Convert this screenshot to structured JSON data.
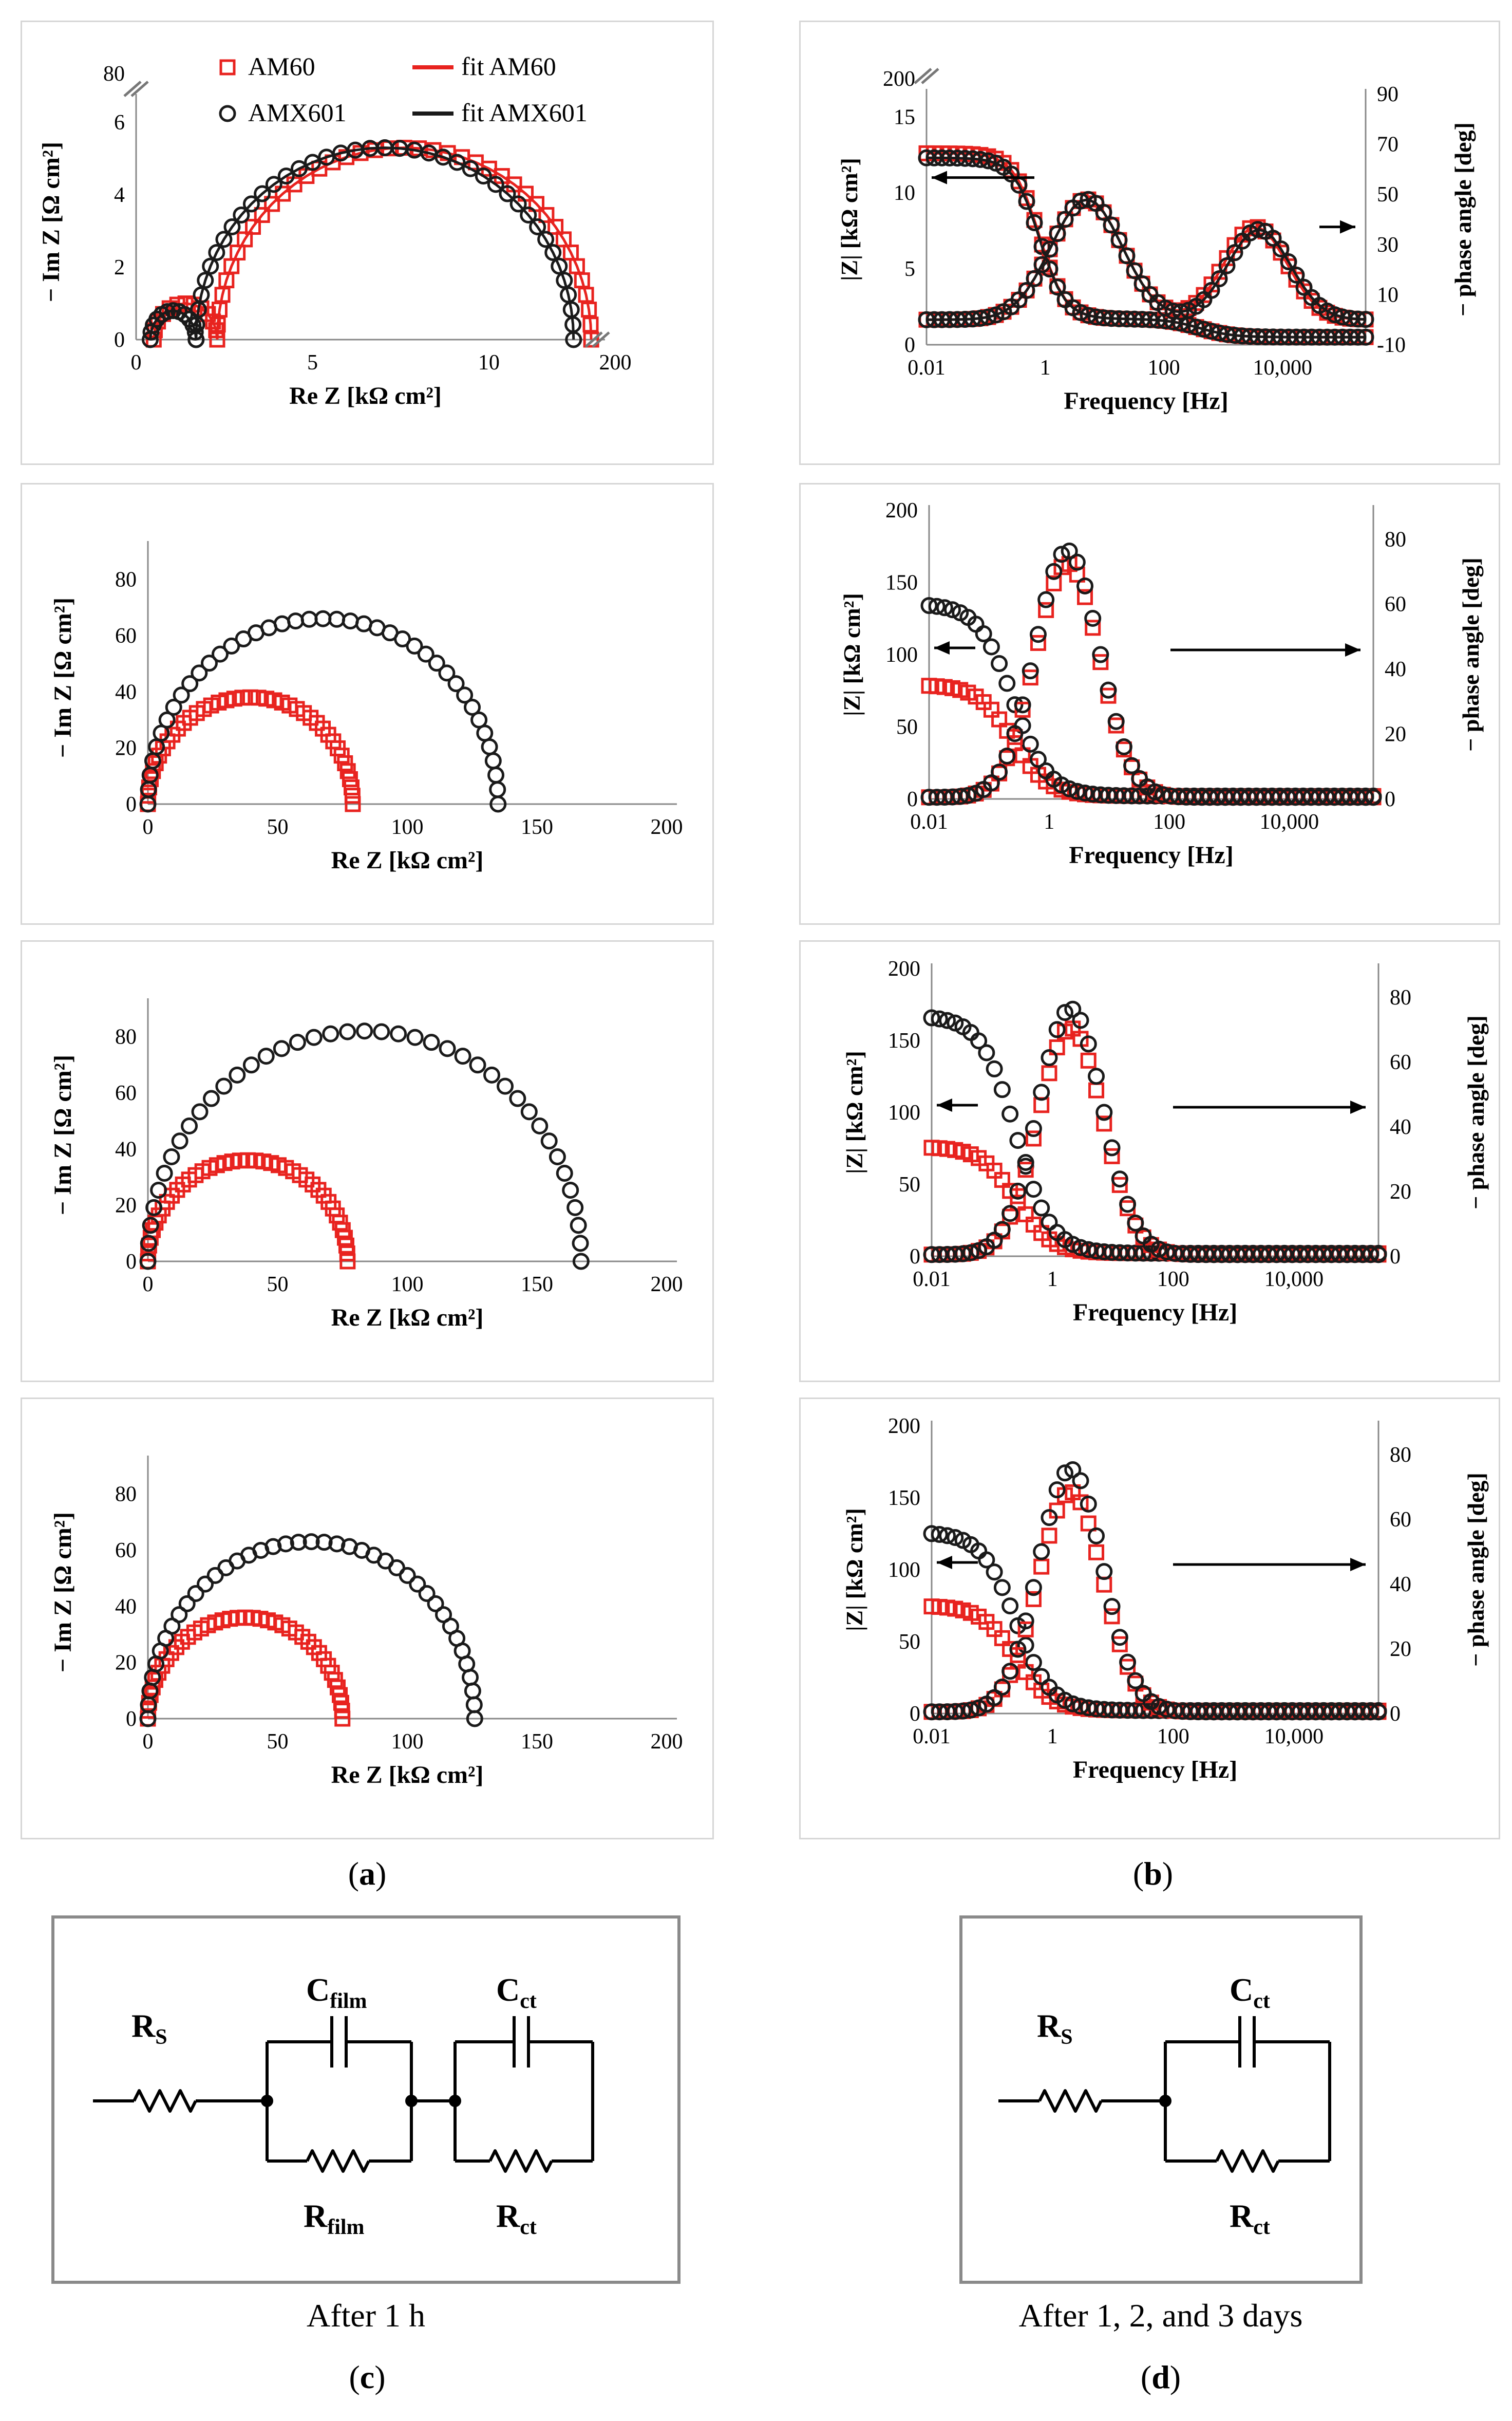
{
  "legend": {
    "am60": "AM60",
    "amx601": "AMX601",
    "fit_am60": "fit AM60",
    "fit_amx601": "fit AMX601",
    "color_am60": "#e8231f",
    "color_amx601": "#1a1a1a"
  },
  "panel_labels": {
    "a": "a",
    "b": "b",
    "c": "c",
    "d": "d"
  },
  "captions": {
    "c": "After 1 h",
    "d": "After 1, 2, and 3 days"
  },
  "circuit_c": {
    "rs": "R",
    "rs_sub": "S",
    "cfilm": "C",
    "cfilm_sub": "film",
    "rfilm": "R",
    "rfilm_sub": "film",
    "cct": "C",
    "cct_sub": "ct",
    "rct": "R",
    "rct_sub": "ct"
  },
  "circuit_d": {
    "rs": "R",
    "rs_sub": "S",
    "cct": "C",
    "cct_sub": "ct",
    "rct": "R",
    "rct_sub": "ct"
  },
  "chart_data": [
    {
      "id": "nyquist-1h",
      "type": "scatter",
      "xlabel": "Re Z [kΩ cm²]",
      "ylabel": "− Im Z [Ω cm²]",
      "xticks": [
        "0",
        "5",
        "10",
        "200"
      ],
      "yticks": [
        "0",
        "2",
        "4",
        "6",
        "80"
      ],
      "xlim": [
        0,
        13
      ],
      "ylim": [
        0,
        6.5
      ],
      "axis_break": true,
      "series": [
        {
          "name": "AM60",
          "arcs": [
            {
              "start": 0.5,
              "end": 2.3,
              "height": 1.0
            },
            {
              "start": 2.3,
              "end": 12.9,
              "height": 5.3
            }
          ]
        },
        {
          "name": "AMX601",
          "arcs": [
            {
              "start": 0.4,
              "end": 1.7,
              "height": 0.8
            },
            {
              "start": 1.7,
              "end": 12.4,
              "height": 5.3
            }
          ]
        }
      ]
    },
    {
      "id": "bode-1h",
      "type": "line",
      "xlabel": "Frequency [Hz]",
      "ylabel_left": "|Z| [kΩ cm²]",
      "ylabel_right": "− phase angle [deg]",
      "xticks": [
        "0.01",
        "1",
        "100",
        "10,000"
      ],
      "yticks_left": [
        "0",
        "5",
        "10",
        "15",
        "200"
      ],
      "yticks_right": [
        "-10",
        "10",
        "30",
        "50",
        "70",
        "90"
      ],
      "ylim_left": [
        0,
        16.5
      ],
      "ylim_right": [
        -10,
        90
      ],
      "axis_break": true,
      "series": [
        {
          "name": "AM60 |Z|",
          "plateau": 12.6,
          "r2": 1.2,
          "f2": 0.8,
          "f1": 400,
          "rs": 0.5
        },
        {
          "name": "AMX601 |Z|",
          "plateau": 12.3,
          "r2": 1.2,
          "f2": 0.8,
          "f1": 400,
          "rs": 0.5
        },
        {
          "name": "AM60 phase",
          "peaks": [
            {
              "peak": 48,
              "freq_hz": 5,
              "width": 0.85
            },
            {
              "peak": 37,
              "freq_hz": 3500,
              "width": 0.75
            }
          ]
        },
        {
          "name": "AMX601 phase",
          "peaks": [
            {
              "peak": 48,
              "freq_hz": 5,
              "width": 0.85
            },
            {
              "peak": 36,
              "freq_hz": 4000,
              "width": 0.75
            }
          ]
        }
      ]
    },
    {
      "id": "nyquist-day1",
      "type": "scatter",
      "xlabel": "Re Z [kΩ cm²]",
      "ylabel": "− Im Z [Ω cm²]",
      "xticks": [
        "0",
        "50",
        "100",
        "150",
        "200"
      ],
      "yticks": [
        "0",
        "20",
        "40",
        "60",
        "80"
      ],
      "xlim": [
        0,
        200
      ],
      "ylim": [
        0,
        90
      ],
      "series": [
        {
          "name": "AM60",
          "start": 0,
          "end": 79,
          "height": 38
        },
        {
          "name": "AMX601",
          "start": 0,
          "end": 135,
          "height": 66
        }
      ]
    },
    {
      "id": "bode-day1",
      "type": "line",
      "xlabel": "Frequency [Hz]",
      "ylabel_left": "|Z| [kΩ cm²]",
      "ylabel_right": "− phase angle [deg]",
      "xticks": [
        "0.01",
        "1",
        "100",
        "10,000"
      ],
      "yticks_left": [
        "0",
        "50",
        "100",
        "150",
        "200"
      ],
      "yticks_right": [
        "0",
        "20",
        "40",
        "60",
        "80"
      ],
      "ylim_left": [
        0,
        200
      ],
      "ylim_right": [
        0,
        88.9
      ],
      "series": [
        {
          "name": "AM60 |Z|",
          "plateau": 79
        },
        {
          "name": "AMX601 |Z|",
          "plateau": 135
        },
        {
          "name": "AM60 phase",
          "peak": 72,
          "freq_hz": 2
        },
        {
          "name": "AMX601 phase",
          "peak": 76,
          "freq_hz": 2
        }
      ]
    },
    {
      "id": "nyquist-day2",
      "type": "scatter",
      "xlabel": "Re Z [kΩ cm²]",
      "ylabel": "− Im Z [Ω cm²]",
      "xticks": [
        "0",
        "50",
        "100",
        "150",
        "200"
      ],
      "yticks": [
        "0",
        "20",
        "40",
        "60",
        "80"
      ],
      "xlim": [
        0,
        200
      ],
      "ylim": [
        0,
        90
      ],
      "series": [
        {
          "name": "AM60",
          "start": 0,
          "end": 77,
          "height": 36
        },
        {
          "name": "AMX601",
          "start": 0,
          "end": 167,
          "height": 82
        }
      ]
    },
    {
      "id": "bode-day2",
      "type": "line",
      "xlabel": "Frequency [Hz]",
      "ylabel_left": "|Z| [kΩ cm²]",
      "ylabel_right": "− phase angle [deg]",
      "xticks": [
        "0.01",
        "1",
        "100",
        "10,000"
      ],
      "yticks_left": [
        "0",
        "50",
        "100",
        "150",
        "200"
      ],
      "yticks_right": [
        "0",
        "20",
        "40",
        "60",
        "80"
      ],
      "ylim_left": [
        0,
        200
      ],
      "ylim_right": [
        0,
        88.9
      ],
      "series": [
        {
          "name": "AM60 |Z|",
          "plateau": 76
        },
        {
          "name": "AMX601 |Z|",
          "plateau": 167
        },
        {
          "name": "AM60 phase",
          "peak": 70,
          "freq_hz": 2
        },
        {
          "name": "AMX601 phase",
          "peak": 76,
          "freq_hz": 2
        }
      ]
    },
    {
      "id": "nyquist-day3",
      "type": "scatter",
      "xlabel": "Re Z [kΩ cm²]",
      "ylabel": "− Im Z [Ω cm²]",
      "xticks": [
        "0",
        "50",
        "100",
        "150",
        "200"
      ],
      "yticks": [
        "0",
        "20",
        "40",
        "60",
        "80"
      ],
      "xlim": [
        0,
        200
      ],
      "ylim": [
        0,
        90
      ],
      "series": [
        {
          "name": "AM60",
          "start": 0,
          "end": 75,
          "height": 36
        },
        {
          "name": "AMX601",
          "start": 0,
          "end": 126,
          "height": 63
        }
      ]
    },
    {
      "id": "bode-day3",
      "type": "line",
      "xlabel": "Frequency [Hz]",
      "ylabel_left": "|Z| [kΩ cm²]",
      "ylabel_right": "− phase angle [deg]",
      "xticks": [
        "0.01",
        "1",
        "100",
        "10,000"
      ],
      "yticks_left": [
        "0",
        "50",
        "100",
        "150",
        "200"
      ],
      "yticks_right": [
        "0",
        "20",
        "40",
        "60",
        "80"
      ],
      "ylim_left": [
        0,
        200
      ],
      "ylim_right": [
        0,
        88.9
      ],
      "series": [
        {
          "name": "AM60 |Z|",
          "plateau": 75
        },
        {
          "name": "AMX601 |Z|",
          "plateau": 126
        },
        {
          "name": "AM60 phase",
          "peak": 68,
          "freq_hz": 2
        },
        {
          "name": "AMX601 phase",
          "peak": 75,
          "freq_hz": 2
        }
      ]
    }
  ]
}
